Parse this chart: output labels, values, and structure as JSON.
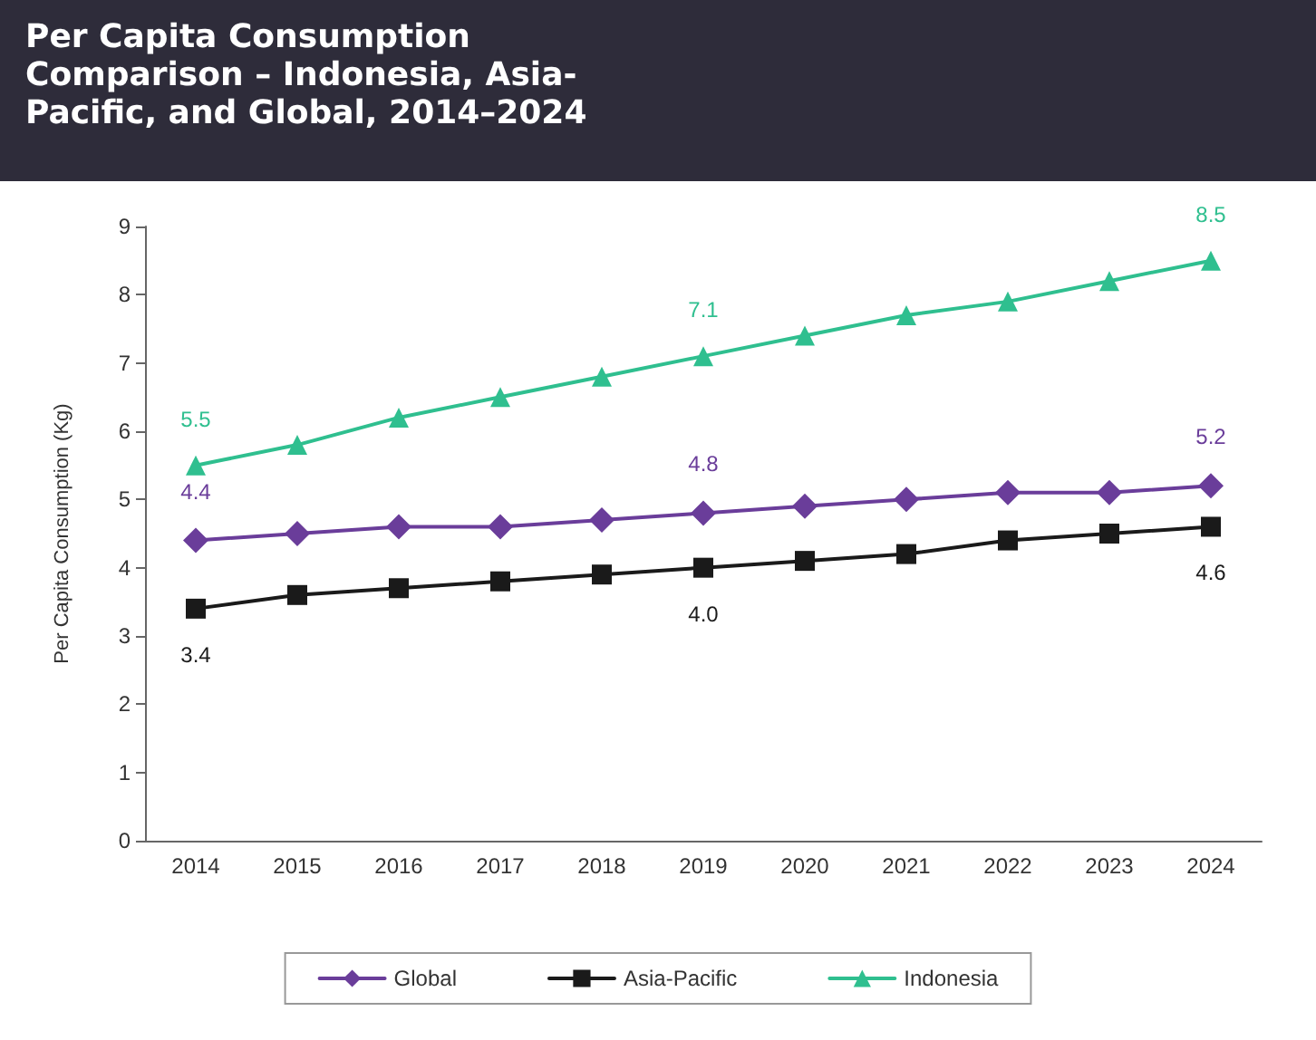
{
  "chart_data": {
    "type": "line",
    "title": "Per Capita Consumption Comparison – Indonesia, Asia-Pacific, and Global, 2014–2024",
    "ylabel": "Per Capita Consumption (Kg)",
    "categories": [
      "2014",
      "2015",
      "2016",
      "2017",
      "2018",
      "2019",
      "2020",
      "2021",
      "2022",
      "2023",
      "2024"
    ],
    "series": [
      {
        "name": "Global",
        "color": "#6a3d9a",
        "marker": "diamond",
        "values": [
          4.4,
          4.5,
          4.6,
          4.6,
          4.7,
          4.8,
          4.9,
          5.0,
          5.1,
          5.1,
          5.2
        ],
        "value_labels": [
          "4.4",
          null,
          null,
          null,
          null,
          "4.8",
          null,
          null,
          null,
          null,
          "5.2"
        ]
      },
      {
        "name": "Asia-Pacific",
        "color": "#1a1a1a",
        "marker": "square",
        "values": [
          3.4,
          3.6,
          3.7,
          3.8,
          3.9,
          4.0,
          4.1,
          4.2,
          4.4,
          4.5,
          4.6
        ],
        "value_labels": [
          "3.4",
          null,
          null,
          null,
          null,
          "4.0",
          null,
          null,
          null,
          null,
          "4.6"
        ]
      },
      {
        "name": "Indonesia",
        "color": "#2fbf8f",
        "marker": "triangle",
        "values": [
          5.5,
          5.8,
          6.2,
          6.5,
          6.8,
          7.1,
          7.4,
          7.7,
          7.9,
          8.2,
          8.5
        ],
        "value_labels": [
          "5.5",
          null,
          null,
          null,
          null,
          "7.1",
          null,
          null,
          null,
          null,
          "8.5"
        ]
      }
    ],
    "ylim": [
      0,
      9
    ],
    "yticks": [
      0,
      1,
      2,
      3,
      4,
      5,
      6,
      7,
      8,
      9
    ],
    "grid": false,
    "legend": "bottom",
    "line_style": "solid"
  }
}
